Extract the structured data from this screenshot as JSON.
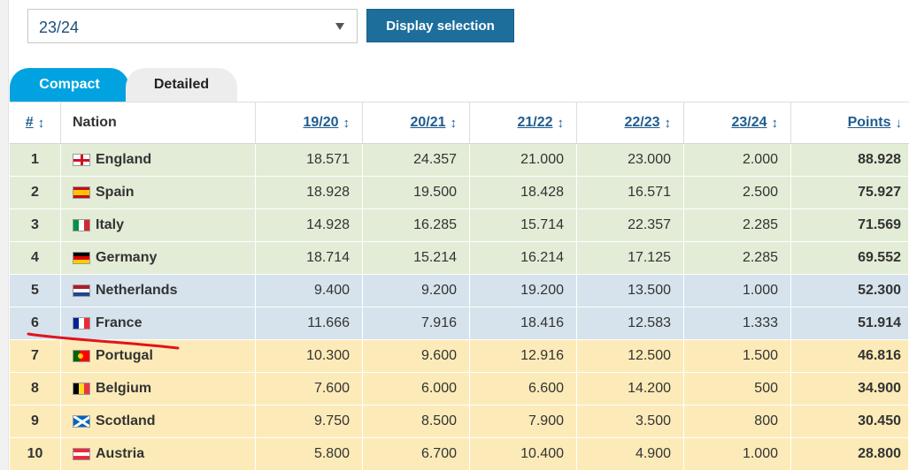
{
  "filter": {
    "season_value": "23/24",
    "display_button": "Display selection"
  },
  "tabs": [
    {
      "label": "Compact",
      "active": true
    },
    {
      "label": "Detailed",
      "active": false
    }
  ],
  "table": {
    "headers": {
      "rank": "#",
      "nation": "Nation",
      "s1": "19/20",
      "s2": "20/21",
      "s3": "21/22",
      "s4": "22/23",
      "s5": "23/24",
      "points": "Points"
    },
    "rows": [
      {
        "rank": "1",
        "nation": "England",
        "flag": "england-flag",
        "s1": "18.571",
        "s2": "24.357",
        "s3": "21.000",
        "s4": "23.000",
        "s5": "2.000",
        "points": "88.928",
        "band": "green"
      },
      {
        "rank": "2",
        "nation": "Spain",
        "flag": "spain-flag",
        "s1": "18.928",
        "s2": "19.500",
        "s3": "18.428",
        "s4": "16.571",
        "s5": "2.500",
        "points": "75.927",
        "band": "green"
      },
      {
        "rank": "3",
        "nation": "Italy",
        "flag": "italy-flag",
        "s1": "14.928",
        "s2": "16.285",
        "s3": "15.714",
        "s4": "22.357",
        "s5": "2.285",
        "points": "71.569",
        "band": "green"
      },
      {
        "rank": "4",
        "nation": "Germany",
        "flag": "germany-flag",
        "s1": "18.714",
        "s2": "15.214",
        "s3": "16.214",
        "s4": "17.125",
        "s5": "2.285",
        "points": "69.552",
        "band": "green"
      },
      {
        "rank": "5",
        "nation": "Netherlands",
        "flag": "netherlands-flag",
        "s1": "9.400",
        "s2": "9.200",
        "s3": "19.200",
        "s4": "13.500",
        "s5": "1.000",
        "points": "52.300",
        "band": "blue"
      },
      {
        "rank": "6",
        "nation": "France",
        "flag": "france-flag",
        "s1": "11.666",
        "s2": "7.916",
        "s3": "18.416",
        "s4": "12.583",
        "s5": "1.333",
        "points": "51.914",
        "band": "blue"
      },
      {
        "rank": "7",
        "nation": "Portugal",
        "flag": "portugal-flag",
        "s1": "10.300",
        "s2": "9.600",
        "s3": "12.916",
        "s4": "12.500",
        "s5": "1.500",
        "points": "46.816",
        "band": "yellow"
      },
      {
        "rank": "8",
        "nation": "Belgium",
        "flag": "belgium-flag",
        "s1": "7.600",
        "s2": "6.000",
        "s3": "6.600",
        "s4": "14.200",
        "s5": "500",
        "points": "34.900",
        "band": "yellow"
      },
      {
        "rank": "9",
        "nation": "Scotland",
        "flag": "scotland-flag",
        "s1": "9.750",
        "s2": "8.500",
        "s3": "7.900",
        "s4": "3.500",
        "s5": "800",
        "points": "30.450",
        "band": "yellow"
      },
      {
        "rank": "10",
        "nation": "Austria",
        "flag": "austria-flag",
        "s1": "5.800",
        "s2": "6.700",
        "s3": "10.400",
        "s4": "4.900",
        "s5": "1.000",
        "points": "28.800",
        "band": "yellow"
      }
    ]
  },
  "colors": {
    "accent": "#00a3e0",
    "button": "#1e6e9c",
    "green_band": "#e3ecd6",
    "blue_band": "#d6e3ec",
    "yellow_band": "#fcebb8",
    "annotation": "#e0141e"
  }
}
